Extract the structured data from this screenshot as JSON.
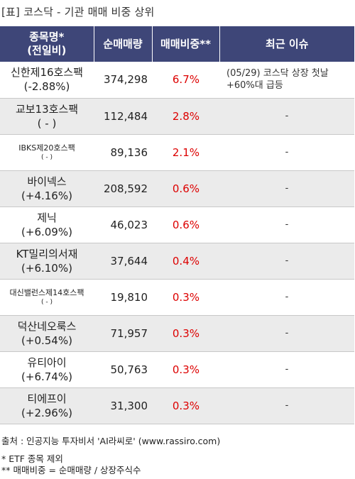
{
  "title": "[표] 코스닥 - 기관 매매 비중 상위",
  "headers": {
    "name_line1": "종목명*",
    "name_line2": "(전일비)",
    "volume": "순매매량",
    "ratio": "매매비중**",
    "issue": "최근 이슈"
  },
  "rows": [
    {
      "name": "신한제16호스팩",
      "change": "(-2.88%)",
      "volume": "374,298",
      "ratio": "6.7%",
      "issue": "(05/29) 코스닥 상장 첫날 +60%대 급등"
    },
    {
      "name": "교보13호스팩",
      "change": "( - )",
      "volume": "112,484",
      "ratio": "2.8%",
      "issue": "-"
    },
    {
      "name": "IBKS제20호스팩",
      "change": "( - )",
      "volume": "89,136",
      "ratio": "2.1%",
      "issue": "-"
    },
    {
      "name": "바이넥스",
      "change": "(+4.16%)",
      "volume": "208,592",
      "ratio": "0.6%",
      "issue": "-"
    },
    {
      "name": "제닉",
      "change": "(+6.09%)",
      "volume": "46,023",
      "ratio": "0.6%",
      "issue": "-"
    },
    {
      "name": "KT밀리의서재",
      "change": "(+6.10%)",
      "volume": "37,644",
      "ratio": "0.4%",
      "issue": "-"
    },
    {
      "name": "대신밸런스제14호스팩",
      "change": "( - )",
      "volume": "19,810",
      "ratio": "0.3%",
      "issue": "-"
    },
    {
      "name": "덕산네오룩스",
      "change": "(+0.54%)",
      "volume": "71,957",
      "ratio": "0.3%",
      "issue": "-"
    },
    {
      "name": "유티아이",
      "change": "(+6.74%)",
      "volume": "50,763",
      "ratio": "0.3%",
      "issue": "-"
    },
    {
      "name": "티에프이",
      "change": "(+2.96%)",
      "volume": "31,300",
      "ratio": "0.3%",
      "issue": "-"
    }
  ],
  "footer": {
    "source": "출처 : 인공지능 투자비서 'AI라씨로' (www.rassiro.com)",
    "note1": "* ETF 종목 제외",
    "note2": "** 매매비중 = 순매매량 / 상장주식수"
  },
  "colors": {
    "header_bg": "#3e4678",
    "ratio_text": "#dd0000",
    "alt_row": "#ebebeb"
  }
}
